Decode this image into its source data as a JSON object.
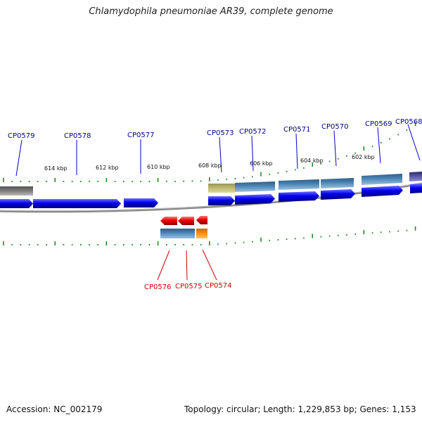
{
  "title": "Chlamydophila pneumoniae AR39, complete genome",
  "footer": {
    "accession": "Accession: NC_002179",
    "summary": "Topology: circular; Length: 1,229,853 bp; Genes: 1,153"
  },
  "colors": {
    "cds_forward": "#0000ee",
    "cds_reverse": "#ee0000",
    "gene_feature": "#4682b4",
    "gene_alt": "#ff8c00",
    "backbone": "#808080",
    "tick": "#228b22",
    "label_forward": "#00008b",
    "label_reverse": "#cc0000"
  },
  "scale_labels": [
    "614 kbp",
    "612 kbp",
    "610 kbp",
    "608 kbp",
    "606 kbp",
    "604 kbp",
    "602 kbp"
  ],
  "genes_forward": [
    "CP0579",
    "CP0578",
    "CP0577",
    "CP0573",
    "CP0572",
    "CP0571",
    "CP0570",
    "CP0569",
    "CP0568"
  ],
  "genes_reverse": [
    "CP0576",
    "CP0575",
    "CP0574"
  ]
}
